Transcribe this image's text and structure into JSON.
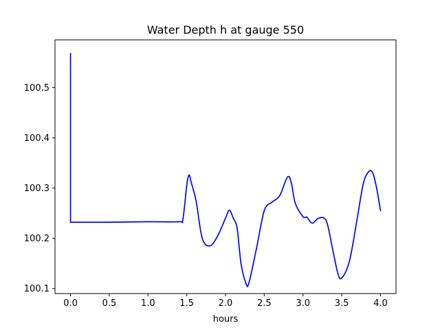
{
  "chart_data": {
    "type": "line",
    "title": "Water Depth h at gauge 550",
    "xlabel": "hours",
    "ylabel": "",
    "xlim": [
      -0.2,
      4.2
    ],
    "ylim": [
      100.09,
      100.595
    ],
    "xticks": [
      0.0,
      0.5,
      1.0,
      1.5,
      2.0,
      2.5,
      3.0,
      3.5,
      4.0
    ],
    "xtick_labels": [
      "0.0",
      "0.5",
      "1.0",
      "1.5",
      "2.0",
      "2.5",
      "3.0",
      "3.5",
      "4.0"
    ],
    "yticks": [
      100.1,
      100.2,
      100.3,
      100.4,
      100.5
    ],
    "ytick_labels": [
      "100.1",
      "100.2",
      "100.3",
      "100.4",
      "100.5"
    ],
    "grid": false,
    "legend": "none",
    "series": [
      {
        "color": "#0000ff",
        "points": [
          [
            0.0,
            100.568
          ],
          [
            0.0,
            100.232
          ],
          [
            0.5,
            100.232
          ],
          [
            1.0,
            100.233
          ],
          [
            1.4,
            100.233
          ],
          [
            1.45,
            100.238
          ],
          [
            1.5,
            100.305
          ],
          [
            1.53,
            100.326
          ],
          [
            1.56,
            100.31
          ],
          [
            1.62,
            100.275
          ],
          [
            1.7,
            100.2
          ],
          [
            1.8,
            100.185
          ],
          [
            1.9,
            100.205
          ],
          [
            2.0,
            100.24
          ],
          [
            2.05,
            100.256
          ],
          [
            2.1,
            100.24
          ],
          [
            2.15,
            100.22
          ],
          [
            2.2,
            100.15
          ],
          [
            2.26,
            100.112
          ],
          [
            2.3,
            100.11
          ],
          [
            2.4,
            100.18
          ],
          [
            2.5,
            100.255
          ],
          [
            2.6,
            100.272
          ],
          [
            2.7,
            100.285
          ],
          [
            2.8,
            100.322
          ],
          [
            2.85,
            100.31
          ],
          [
            2.9,
            100.27
          ],
          [
            3.0,
            100.243
          ],
          [
            3.05,
            100.242
          ],
          [
            3.12,
            100.23
          ],
          [
            3.2,
            100.24
          ],
          [
            3.3,
            100.235
          ],
          [
            3.38,
            100.18
          ],
          [
            3.45,
            100.13
          ],
          [
            3.5,
            100.121
          ],
          [
            3.6,
            100.155
          ],
          [
            3.7,
            100.24
          ],
          [
            3.78,
            100.31
          ],
          [
            3.85,
            100.333
          ],
          [
            3.9,
            100.33
          ],
          [
            3.95,
            100.3
          ],
          [
            4.0,
            100.255
          ]
        ]
      }
    ]
  }
}
